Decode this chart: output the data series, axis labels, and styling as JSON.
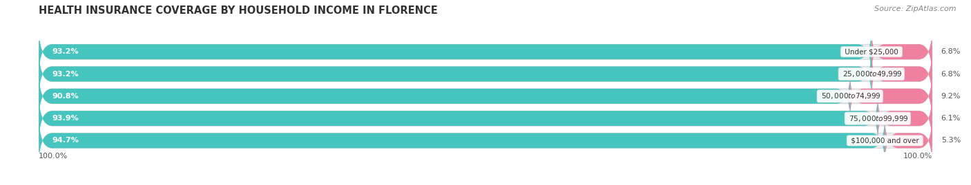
{
  "title": "HEALTH INSURANCE COVERAGE BY HOUSEHOLD INCOME IN FLORENCE",
  "source": "Source: ZipAtlas.com",
  "categories": [
    "Under $25,000",
    "$25,000 to $49,999",
    "$50,000 to $74,999",
    "$75,000 to $99,999",
    "$100,000 and over"
  ],
  "with_coverage": [
    93.2,
    93.2,
    90.8,
    93.9,
    94.7
  ],
  "without_coverage": [
    6.8,
    6.8,
    9.2,
    6.1,
    5.3
  ],
  "color_with": "#46C5BE",
  "color_without": "#F080A0",
  "color_bg_bar": "#EBEBF0",
  "title_fontsize": 10.5,
  "label_fontsize": 8.0,
  "tick_fontsize": 8.0,
  "source_fontsize": 8,
  "legend_fontsize": 8.5,
  "bar_height": 0.68,
  "xlim": [
    0,
    100
  ],
  "background_color": "#FFFFFF",
  "axes_bg": "#F2F2F5"
}
